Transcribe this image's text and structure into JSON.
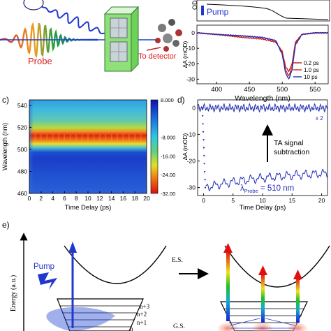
{
  "panel_a": {
    "probe_label": "Probe",
    "detector_label": "To detector",
    "pump_legend": "Pump",
    "axis_od_fragment": "OD"
  },
  "panel_b": {
    "ylabel": "ΔA (mOD)",
    "xlabel": "Wavelength (nm)",
    "xticks": [
      "400",
      "450",
      "500",
      "550"
    ],
    "yticks": [
      "0",
      "-10",
      "-20",
      "-30"
    ],
    "legend": [
      "0.2 ps",
      "1.0 ps",
      "10 ps"
    ],
    "legend_colors": [
      "#c01818",
      "#d81c1c",
      "#1f2ab8"
    ]
  },
  "panel_c": {
    "tag": "c)",
    "ylabel": "Wavelength (nm)",
    "xlabel": "Time Delay (ps)",
    "xticks": [
      "0",
      "2",
      "4",
      "6",
      "8",
      "10",
      "12",
      "14",
      "16",
      "18",
      "20"
    ],
    "yticks": [
      "540",
      "520",
      "500",
      "480",
      "460"
    ],
    "colorbar_ticks": [
      "8.000",
      "-8.000",
      "-16.00",
      "-24.00",
      "-32.00"
    ]
  },
  "panel_d": {
    "tag": "d)",
    "ylabel": "ΔA (mOD)",
    "xlabel": "Time Delay (ps)",
    "xticks": [
      "0",
      "5",
      "10",
      "15",
      "20"
    ],
    "yticks": [
      "0",
      "-10",
      "-20",
      "-30"
    ],
    "scale_note": "x 2",
    "arrow_text_1": "TA signal",
    "arrow_text_2": "subtraction",
    "probe_text": "λ",
    "probe_sub": "Probe",
    "probe_value": " = 510 nm"
  },
  "panel_e": {
    "tag": "e)",
    "energy_label": "Energy (a.u.)",
    "es_label": "E.S.",
    "gs_label": "G.S.",
    "pump_label": "Pump",
    "levels": [
      "n+3",
      "n+2",
      "n+1",
      "n"
    ]
  },
  "chart_data": [
    {
      "type": "line",
      "xlabel": "Wavelength (nm)",
      "ylabel": "ΔA (mOD)",
      "xlim": [
        370,
        570
      ],
      "ylim": [
        -33,
        5
      ],
      "series": [
        {
          "name": "0.2 ps",
          "color": "#c01818",
          "x": [
            370,
            400,
            440,
            470,
            490,
            500,
            505,
            510,
            515,
            520,
            530,
            550,
            570
          ],
          "y": [
            0,
            -1,
            -3,
            -4,
            -6,
            -12,
            -22,
            -25,
            -20,
            -6,
            -1,
            0,
            0
          ]
        },
        {
          "name": "1.0 ps",
          "color": "#d81c1c",
          "x": [
            370,
            400,
            440,
            470,
            490,
            500,
            505,
            510,
            515,
            520,
            530,
            550,
            570
          ],
          "y": [
            0,
            -1,
            -2,
            -3,
            -5,
            -13,
            -24,
            -28,
            -22,
            -7,
            -1,
            0,
            0
          ]
        },
        {
          "name": "10 ps",
          "color": "#1f2ab8",
          "x": [
            370,
            400,
            440,
            470,
            490,
            500,
            505,
            510,
            515,
            520,
            530,
            550,
            570
          ],
          "y": [
            0,
            -1,
            -2,
            -3,
            -5,
            -14,
            -26,
            -30,
            -24,
            -8,
            -1,
            0,
            0
          ]
        }
      ]
    },
    {
      "type": "heatmap",
      "xlabel": "Time Delay (ps)",
      "ylabel": "Wavelength (nm)",
      "xlim": [
        0,
        20
      ],
      "ylim": [
        460,
        545
      ],
      "colorbar": {
        "min": -32,
        "max": 8
      }
    },
    {
      "type": "scatter",
      "xlabel": "Time Delay (ps)",
      "ylabel": "ΔA (mOD)",
      "xlim": [
        -1,
        21
      ],
      "ylim": [
        -33,
        3
      ],
      "annotations": [
        "x 2",
        "TA signal subtraction",
        "λProbe = 510 nm"
      ]
    }
  ]
}
